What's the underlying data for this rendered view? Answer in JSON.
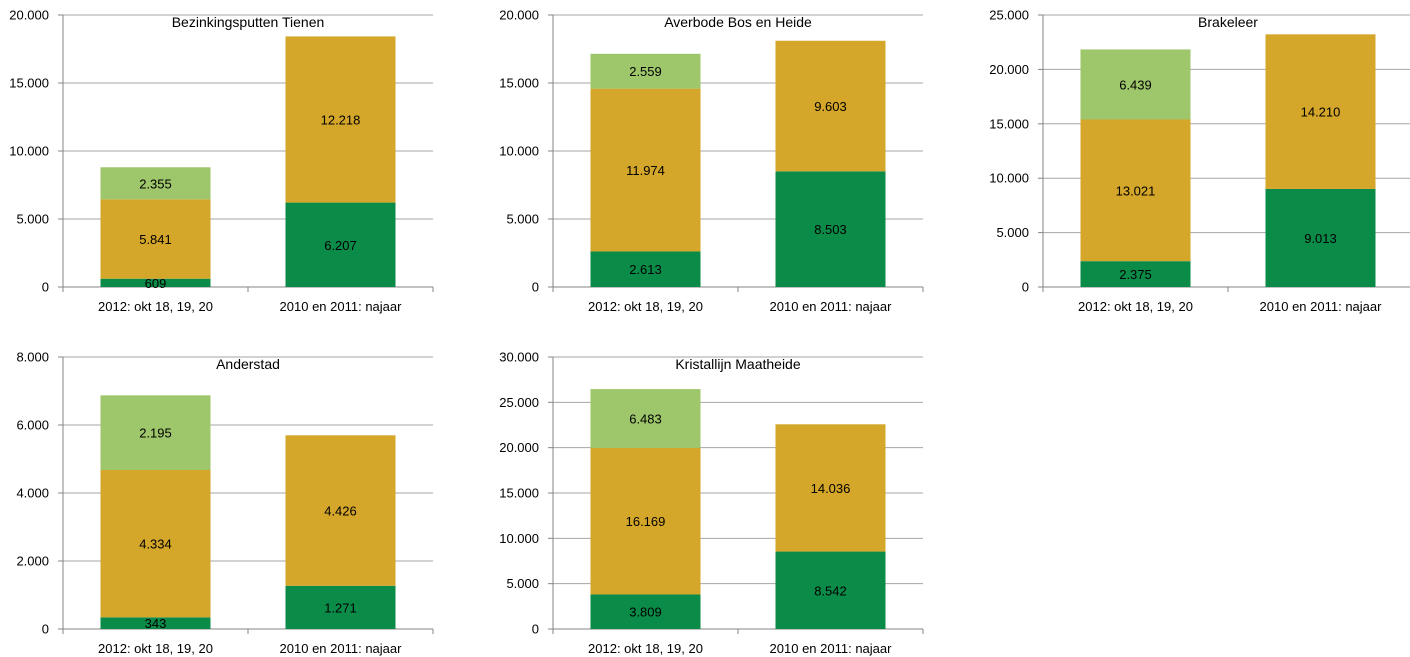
{
  "colors": {
    "series_dark_green": "#0b8b48",
    "series_gold": "#d4a62a",
    "series_light_green": "#9ec66a",
    "gridline": "#a6a6a6",
    "axis": "#868686",
    "text": "#000000"
  },
  "chart_data": [
    {
      "type": "bar",
      "stacked": true,
      "title": "Bezinkingsputten Tienen",
      "categories": [
        "2012: okt 18, 19, 20",
        "2010 en 2011: najaar"
      ],
      "series": [
        {
          "values": [
            609,
            6207
          ]
        },
        {
          "values": [
            5841,
            12218
          ]
        },
        {
          "values": [
            2355,
            null
          ]
        }
      ],
      "value_labels": [
        [
          "609",
          "6.207"
        ],
        [
          "5.841",
          "12.218"
        ],
        [
          "2.355",
          ""
        ]
      ],
      "ylim": [
        0,
        20000
      ],
      "yticks": [
        0,
        5000,
        10000,
        15000,
        20000
      ],
      "ytick_labels": [
        "0",
        "5.000",
        "10.000",
        "15.000",
        "20.000"
      ],
      "grid": true,
      "legend": "none"
    },
    {
      "type": "bar",
      "stacked": true,
      "title": "Averbode Bos en Heide",
      "categories": [
        "2012: okt 18, 19, 20",
        "2010 en 2011: najaar"
      ],
      "series": [
        {
          "values": [
            2613,
            8503
          ]
        },
        {
          "values": [
            11974,
            9603
          ]
        },
        {
          "values": [
            2559,
            null
          ]
        }
      ],
      "value_labels": [
        [
          "2.613",
          "8.503"
        ],
        [
          "11.974",
          "9.603"
        ],
        [
          "2.559",
          ""
        ]
      ],
      "ylim": [
        0,
        20000
      ],
      "yticks": [
        0,
        5000,
        10000,
        15000,
        20000
      ],
      "ytick_labels": [
        "0",
        "5.000",
        "10.000",
        "15.000",
        "20.000"
      ],
      "grid": true,
      "legend": "none"
    },
    {
      "type": "bar",
      "stacked": true,
      "title": "Brakeleer",
      "categories": [
        "2012: okt 18, 19, 20",
        "2010 en 2011: najaar"
      ],
      "series": [
        {
          "values": [
            2375,
            9013
          ]
        },
        {
          "values": [
            13021,
            14210
          ]
        },
        {
          "values": [
            6439,
            null
          ]
        }
      ],
      "value_labels": [
        [
          "2.375",
          "9.013"
        ],
        [
          "13.021",
          "14.210"
        ],
        [
          "6.439",
          ""
        ]
      ],
      "ylim": [
        0,
        25000
      ],
      "yticks": [
        0,
        5000,
        10000,
        15000,
        20000,
        25000
      ],
      "ytick_labels": [
        "0",
        "5.000",
        "10.000",
        "15.000",
        "20.000",
        "25.000"
      ],
      "grid": true,
      "legend": "none"
    },
    {
      "type": "bar",
      "stacked": true,
      "title": "Anderstad",
      "categories": [
        "2012: okt 18, 19, 20",
        "2010 en 2011: najaar"
      ],
      "series": [
        {
          "values": [
            343,
            1271
          ]
        },
        {
          "values": [
            4334,
            4426
          ]
        },
        {
          "values": [
            2195,
            null
          ]
        }
      ],
      "value_labels": [
        [
          "343",
          "1.271"
        ],
        [
          "4.334",
          "4.426"
        ],
        [
          "2.195",
          ""
        ]
      ],
      "ylim": [
        0,
        8000
      ],
      "yticks": [
        0,
        2000,
        4000,
        6000,
        8000
      ],
      "ytick_labels": [
        "0",
        "2.000",
        "4.000",
        "6.000",
        "8.000"
      ],
      "grid": true,
      "legend": "none"
    },
    {
      "type": "bar",
      "stacked": true,
      "title": "Kristallijn Maatheide",
      "categories": [
        "2012: okt 18, 19, 20",
        "2010 en 2011: najaar"
      ],
      "series": [
        {
          "values": [
            3809,
            8542
          ]
        },
        {
          "values": [
            16169,
            14036
          ]
        },
        {
          "values": [
            6483,
            null
          ]
        }
      ],
      "value_labels": [
        [
          "3.809",
          "8.542"
        ],
        [
          "16.169",
          "14.036"
        ],
        [
          "6.483",
          ""
        ]
      ],
      "ylim": [
        0,
        30000
      ],
      "yticks": [
        0,
        5000,
        10000,
        15000,
        20000,
        25000,
        30000
      ],
      "ytick_labels": [
        "0",
        "5.000",
        "10.000",
        "15.000",
        "20.000",
        "25.000",
        "30.000"
      ],
      "grid": true,
      "legend": "none"
    }
  ]
}
